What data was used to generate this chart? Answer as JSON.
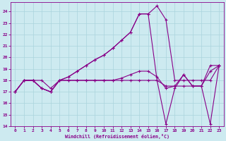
{
  "xlabel": "Windchill (Refroidissement éolien,°C)",
  "xlim": [
    -0.5,
    23.5
  ],
  "ylim": [
    14,
    24.8
  ],
  "yticks": [
    14,
    15,
    16,
    17,
    18,
    19,
    20,
    21,
    22,
    23,
    24
  ],
  "xticks": [
    0,
    1,
    2,
    3,
    4,
    5,
    6,
    7,
    8,
    9,
    10,
    11,
    12,
    13,
    14,
    15,
    16,
    17,
    18,
    19,
    20,
    21,
    22,
    23
  ],
  "bg_color": "#cdeaf0",
  "line_color": "#880088",
  "grid_color": "#aad4dc",
  "line1_x": [
    0,
    1,
    2,
    3,
    4,
    5,
    6,
    7,
    8,
    9,
    10,
    11,
    12,
    13,
    14,
    15,
    16,
    17,
    18,
    19,
    20,
    21,
    22,
    23
  ],
  "line1_y": [
    17.0,
    18.0,
    18.0,
    18.0,
    17.3,
    18.0,
    18.0,
    18.0,
    18.0,
    18.0,
    18.0,
    18.0,
    18.0,
    18.0,
    18.0,
    18.0,
    18.0,
    17.5,
    17.5,
    17.5,
    17.5,
    17.5,
    19.3,
    19.3
  ],
  "line2_x": [
    0,
    1,
    2,
    3,
    4,
    5,
    6,
    7,
    8,
    9,
    10,
    11,
    12,
    13,
    14,
    15,
    16,
    17,
    18,
    19,
    20,
    21,
    22,
    23
  ],
  "line2_y": [
    17.0,
    18.0,
    18.0,
    17.3,
    17.0,
    18.0,
    18.3,
    18.8,
    19.3,
    19.8,
    20.2,
    20.8,
    21.5,
    22.2,
    23.8,
    23.8,
    24.5,
    23.3,
    18.0,
    18.0,
    18.0,
    18.0,
    18.0,
    19.3
  ],
  "line3_x": [
    0,
    1,
    2,
    3,
    4,
    5,
    6,
    7,
    8,
    9,
    10,
    11,
    12,
    13,
    14,
    15,
    16,
    17,
    18,
    19,
    20,
    21,
    22,
    23
  ],
  "line3_y": [
    17.0,
    18.0,
    18.0,
    17.3,
    17.0,
    18.0,
    18.3,
    18.8,
    19.3,
    19.8,
    20.2,
    20.8,
    21.5,
    22.2,
    23.8,
    23.8,
    18.0,
    14.2,
    17.3,
    18.5,
    17.5,
    17.5,
    14.2,
    19.3
  ],
  "line4_x": [
    0,
    1,
    2,
    3,
    4,
    5,
    6,
    7,
    8,
    9,
    10,
    11,
    12,
    13,
    14,
    15,
    16,
    17,
    18,
    19,
    20,
    21,
    22,
    23
  ],
  "line4_y": [
    17.0,
    18.0,
    18.0,
    17.3,
    17.0,
    18.0,
    18.0,
    18.0,
    18.0,
    18.0,
    18.0,
    18.0,
    18.2,
    18.5,
    18.8,
    18.8,
    18.3,
    17.3,
    17.5,
    18.5,
    17.5,
    17.5,
    18.8,
    19.3
  ]
}
